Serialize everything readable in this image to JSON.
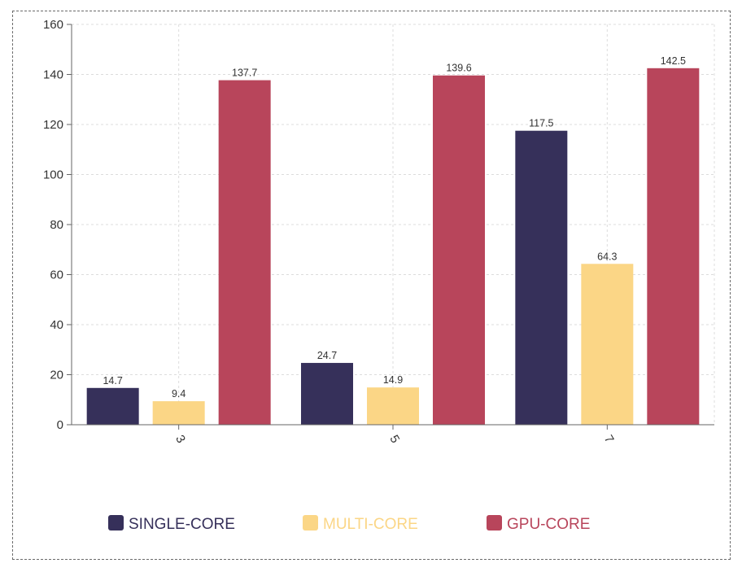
{
  "chart_data": {
    "type": "bar",
    "categories": [
      "3",
      "5",
      "7"
    ],
    "series": [
      {
        "name": "SINGLE-CORE",
        "color": "#36305a",
        "values": [
          14.7,
          24.7,
          117.5
        ]
      },
      {
        "name": "MULTI-CORE",
        "color": "#fbd686",
        "values": [
          9.4,
          14.9,
          64.3
        ]
      },
      {
        "name": "GPU-CORE",
        "color": "#b8455b",
        "values": [
          137.7,
          139.6,
          142.5
        ]
      }
    ],
    "ylim": [
      0,
      160
    ],
    "yticks": [
      0,
      20,
      40,
      60,
      80,
      100,
      120,
      140,
      160
    ],
    "grid": true,
    "legend_position": "bottom"
  }
}
